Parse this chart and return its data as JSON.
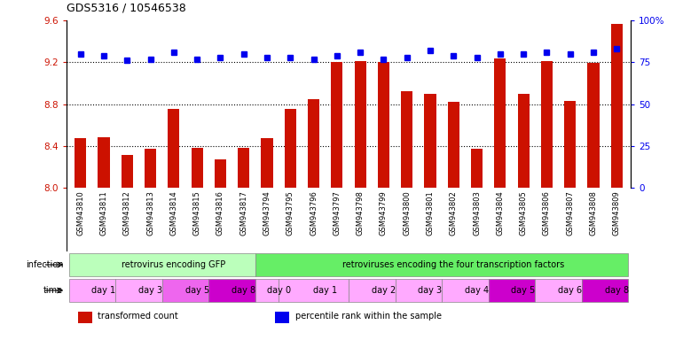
{
  "title": "GDS5316 / 10546538",
  "samples": [
    "GSM943810",
    "GSM943811",
    "GSM943812",
    "GSM943813",
    "GSM943814",
    "GSM943815",
    "GSM943816",
    "GSM943817",
    "GSM943794",
    "GSM943795",
    "GSM943796",
    "GSM943797",
    "GSM943798",
    "GSM943799",
    "GSM943800",
    "GSM943801",
    "GSM943802",
    "GSM943803",
    "GSM943804",
    "GSM943805",
    "GSM943806",
    "GSM943807",
    "GSM943808",
    "GSM943809"
  ],
  "bar_values": [
    8.47,
    8.48,
    8.31,
    8.37,
    8.75,
    8.38,
    8.27,
    8.38,
    8.47,
    8.75,
    8.85,
    9.2,
    9.21,
    9.2,
    8.92,
    8.9,
    8.82,
    8.37,
    9.24,
    8.9,
    9.21,
    8.83,
    9.19,
    9.57
  ],
  "percentile_pct": [
    80,
    79,
    76,
    77,
    81,
    77,
    78,
    80,
    78,
    78,
    77,
    79,
    81,
    77,
    78,
    82,
    79,
    78,
    80,
    80,
    81,
    80,
    81,
    83
  ],
  "bar_color": "#cc1100",
  "percentile_color": "#0000ee",
  "ylim_left": [
    8.0,
    9.6
  ],
  "ylim_right": [
    0,
    100
  ],
  "yticks_left": [
    8.0,
    8.4,
    8.8,
    9.2,
    9.6
  ],
  "yticks_right": [
    0,
    25,
    50,
    75,
    100
  ],
  "grid_lines": [
    8.4,
    8.8,
    9.2
  ],
  "infection_groups": [
    {
      "label": "retrovirus encoding GFP",
      "start": 0,
      "end": 8,
      "color": "#bbffbb"
    },
    {
      "label": "retroviruses encoding the four transcription factors",
      "start": 8,
      "end": 24,
      "color": "#66ee66"
    }
  ],
  "time_groups": [
    {
      "label": "day 1",
      "start": 0,
      "end": 2,
      "color": "#ffaaff"
    },
    {
      "label": "day 3",
      "start": 2,
      "end": 4,
      "color": "#ffaaff"
    },
    {
      "label": "day 5",
      "start": 4,
      "end": 6,
      "color": "#ee66ee"
    },
    {
      "label": "day 8",
      "start": 6,
      "end": 8,
      "color": "#cc00cc"
    },
    {
      "label": "day 0",
      "start": 8,
      "end": 9,
      "color": "#ffaaff"
    },
    {
      "label": "day 1",
      "start": 9,
      "end": 12,
      "color": "#ffaaff"
    },
    {
      "label": "day 2",
      "start": 12,
      "end": 14,
      "color": "#ffaaff"
    },
    {
      "label": "day 3",
      "start": 14,
      "end": 16,
      "color": "#ffaaff"
    },
    {
      "label": "day 4",
      "start": 16,
      "end": 18,
      "color": "#ffaaff"
    },
    {
      "label": "day 5",
      "start": 18,
      "end": 20,
      "color": "#cc00cc"
    },
    {
      "label": "day 6",
      "start": 20,
      "end": 22,
      "color": "#ffaaff"
    },
    {
      "label": "day 8",
      "start": 22,
      "end": 24,
      "color": "#cc00cc"
    }
  ],
  "legend_items": [
    {
      "label": "transformed count",
      "color": "#cc1100"
    },
    {
      "label": "percentile rank within the sample",
      "color": "#0000ee"
    }
  ],
  "xtick_bg": "#dddddd",
  "bar_width": 0.5
}
